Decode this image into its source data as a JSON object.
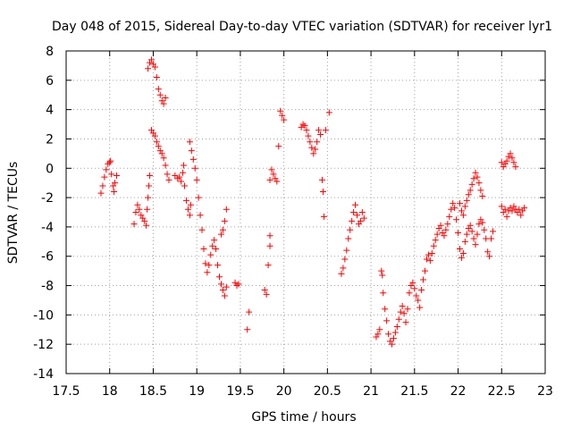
{
  "chart_data": {
    "type": "scatter",
    "title": "Day 048 of 2015, Sidereal Day-to-day VTEC variation (SDTVAR) for receiver lyr1",
    "xlabel": "GPS time / hours",
    "ylabel": "SDTVAR / TECUs",
    "xlim": [
      17.5,
      23
    ],
    "ylim": [
      -14,
      8
    ],
    "xticks": [
      17.5,
      18,
      18.5,
      19,
      19.5,
      20,
      20.5,
      21,
      21.5,
      22,
      22.5,
      23
    ],
    "xtick_labels": [
      "17.5",
      "18",
      "18.5",
      "19",
      "19.5",
      "20",
      "20.5",
      "21",
      "21.5",
      "22",
      "22.5",
      "23"
    ],
    "yticks": [
      -14,
      -12,
      -10,
      -8,
      -6,
      -4,
      -2,
      0,
      2,
      4,
      6,
      8
    ],
    "ytick_labels": [
      "-14",
      "-12",
      "-10",
      "-8",
      "-6",
      "-4",
      "-2",
      "0",
      "2",
      "4",
      "6",
      "8"
    ],
    "grid": true,
    "marker": "+",
    "marker_color": "#ff0000",
    "series": [
      {
        "name": "lyr1",
        "points": [
          [
            17.9,
            -1.7
          ],
          [
            17.92,
            -1.2
          ],
          [
            17.94,
            -0.6
          ],
          [
            17.96,
            -0.1
          ],
          [
            17.98,
            0.3
          ],
          [
            18.0,
            0.4
          ],
          [
            18.01,
            0.5
          ],
          [
            18.02,
            -0.4
          ],
          [
            18.04,
            -1.2
          ],
          [
            18.05,
            -1.6
          ],
          [
            18.06,
            -1.0
          ],
          [
            18.08,
            -0.5
          ],
          [
            18.28,
            -3.8
          ],
          [
            18.3,
            -3.0
          ],
          [
            18.32,
            -2.5
          ],
          [
            18.34,
            -2.8
          ],
          [
            18.36,
            -3.2
          ],
          [
            18.38,
            -3.4
          ],
          [
            18.4,
            -3.6
          ],
          [
            18.42,
            -3.9
          ],
          [
            18.43,
            -2.8
          ],
          [
            18.44,
            -2.0
          ],
          [
            18.45,
            -1.2
          ],
          [
            18.46,
            -0.5
          ],
          [
            18.44,
            6.8
          ],
          [
            18.46,
            7.2
          ],
          [
            18.48,
            7.4
          ],
          [
            18.5,
            7.1
          ],
          [
            18.52,
            6.9
          ],
          [
            18.54,
            6.2
          ],
          [
            18.56,
            5.4
          ],
          [
            18.58,
            5.0
          ],
          [
            18.6,
            4.6
          ],
          [
            18.62,
            4.4
          ],
          [
            18.64,
            4.8
          ],
          [
            18.48,
            2.6
          ],
          [
            18.5,
            2.4
          ],
          [
            18.52,
            2.2
          ],
          [
            18.54,
            1.8
          ],
          [
            18.56,
            1.5
          ],
          [
            18.58,
            1.2
          ],
          [
            18.6,
            1.0
          ],
          [
            18.62,
            0.7
          ],
          [
            18.64,
            0.2
          ],
          [
            18.66,
            -0.4
          ],
          [
            18.68,
            -0.8
          ],
          [
            18.75,
            -0.5
          ],
          [
            18.78,
            -0.7
          ],
          [
            18.8,
            -0.6
          ],
          [
            18.82,
            -0.9
          ],
          [
            18.84,
            -0.3
          ],
          [
            18.85,
            0.2
          ],
          [
            18.86,
            -1.2
          ],
          [
            18.88,
            -2.2
          ],
          [
            18.9,
            -2.8
          ],
          [
            18.92,
            -3.2
          ],
          [
            18.93,
            -2.5
          ],
          [
            18.92,
            1.8
          ],
          [
            18.94,
            1.2
          ],
          [
            18.96,
            0.6
          ],
          [
            18.98,
            0.0
          ],
          [
            19.0,
            -0.8
          ],
          [
            19.02,
            -2.0
          ],
          [
            19.04,
            -3.2
          ],
          [
            19.06,
            -4.2
          ],
          [
            19.08,
            -5.5
          ],
          [
            19.1,
            -6.5
          ],
          [
            19.12,
            -7.1
          ],
          [
            19.14,
            -6.6
          ],
          [
            19.16,
            -5.9
          ],
          [
            19.18,
            -5.3
          ],
          [
            19.2,
            -4.9
          ],
          [
            19.22,
            -5.5
          ],
          [
            19.24,
            -6.6
          ],
          [
            19.26,
            -7.4
          ],
          [
            19.28,
            -7.9
          ],
          [
            19.3,
            -8.3
          ],
          [
            19.32,
            -8.7
          ],
          [
            19.34,
            -8.1
          ],
          [
            19.28,
            -4.5
          ],
          [
            19.3,
            -4.2
          ],
          [
            19.32,
            -3.6
          ],
          [
            19.34,
            -2.8
          ],
          [
            19.44,
            -7.8
          ],
          [
            19.46,
            -8.0
          ],
          [
            19.48,
            -7.9
          ],
          [
            19.58,
            -11.0
          ],
          [
            19.6,
            -9.8
          ],
          [
            19.78,
            -8.3
          ],
          [
            19.8,
            -8.6
          ],
          [
            19.82,
            -6.6
          ],
          [
            19.84,
            -4.6
          ],
          [
            19.84,
            -5.3
          ],
          [
            19.84,
            -0.8
          ],
          [
            19.86,
            -0.1
          ],
          [
            19.88,
            -0.4
          ],
          [
            19.9,
            -0.7
          ],
          [
            19.92,
            -0.9
          ],
          [
            19.94,
            1.5
          ],
          [
            19.96,
            3.9
          ],
          [
            19.98,
            3.6
          ],
          [
            20.0,
            3.3
          ],
          [
            20.2,
            2.8
          ],
          [
            20.22,
            3.0
          ],
          [
            20.24,
            2.9
          ],
          [
            20.26,
            2.6
          ],
          [
            20.28,
            2.2
          ],
          [
            20.3,
            1.8
          ],
          [
            20.32,
            1.4
          ],
          [
            20.34,
            1.0
          ],
          [
            20.36,
            1.3
          ],
          [
            20.38,
            1.8
          ],
          [
            20.4,
            2.6
          ],
          [
            20.42,
            2.3
          ],
          [
            20.44,
            -0.8
          ],
          [
            20.45,
            -1.6
          ],
          [
            20.46,
            -3.3
          ],
          [
            20.48,
            2.6
          ],
          [
            20.52,
            3.8
          ],
          [
            20.66,
            -7.2
          ],
          [
            20.68,
            -6.8
          ],
          [
            20.7,
            -6.2
          ],
          [
            20.72,
            -5.6
          ],
          [
            20.74,
            -4.8
          ],
          [
            20.76,
            -4.2
          ],
          [
            20.78,
            -3.6
          ],
          [
            20.8,
            -3.0
          ],
          [
            20.82,
            -2.5
          ],
          [
            20.84,
            -3.2
          ],
          [
            20.86,
            -3.8
          ],
          [
            20.88,
            -3.6
          ],
          [
            20.9,
            -3.0
          ],
          [
            20.92,
            -3.4
          ],
          [
            21.06,
            -11.5
          ],
          [
            21.08,
            -11.3
          ],
          [
            21.1,
            -11.0
          ],
          [
            21.12,
            -7.0
          ],
          [
            21.13,
            -7.3
          ],
          [
            21.14,
            -8.5
          ],
          [
            21.16,
            -9.6
          ],
          [
            21.18,
            -10.4
          ],
          [
            21.2,
            -11.3
          ],
          [
            21.22,
            -11.8
          ],
          [
            21.24,
            -12.0
          ],
          [
            21.26,
            -11.6
          ],
          [
            21.28,
            -11.2
          ],
          [
            21.3,
            -10.8
          ],
          [
            21.32,
            -10.3
          ],
          [
            21.34,
            -9.8
          ],
          [
            21.36,
            -9.4
          ],
          [
            21.38,
            -9.9
          ],
          [
            21.4,
            -10.5
          ],
          [
            21.42,
            -9.6
          ],
          [
            21.44,
            -8.5
          ],
          [
            21.46,
            -8.0
          ],
          [
            21.48,
            -7.8
          ],
          [
            21.5,
            -8.2
          ],
          [
            21.52,
            -8.7
          ],
          [
            21.54,
            -9.0
          ],
          [
            21.56,
            -9.5
          ],
          [
            21.58,
            -8.3
          ],
          [
            21.6,
            -7.6
          ],
          [
            21.62,
            -7.0
          ],
          [
            21.64,
            -6.2
          ],
          [
            21.66,
            -5.9
          ],
          [
            21.68,
            -6.3
          ],
          [
            21.7,
            -5.8
          ],
          [
            21.72,
            -5.3
          ],
          [
            21.74,
            -4.9
          ],
          [
            21.76,
            -4.5
          ],
          [
            21.78,
            -4.1
          ],
          [
            21.8,
            -3.9
          ],
          [
            21.82,
            -4.4
          ],
          [
            21.84,
            -4.6
          ],
          [
            21.86,
            -4.2
          ],
          [
            21.88,
            -3.8
          ],
          [
            21.9,
            -3.3
          ],
          [
            21.92,
            -2.8
          ],
          [
            21.94,
            -2.4
          ],
          [
            21.96,
            -2.7
          ],
          [
            21.98,
            -3.5
          ],
          [
            22.0,
            -4.4
          ],
          [
            22.02,
            -5.5
          ],
          [
            22.04,
            -6.1
          ],
          [
            22.06,
            -5.8
          ],
          [
            22.08,
            -5.0
          ],
          [
            22.1,
            -4.5
          ],
          [
            22.12,
            -4.1
          ],
          [
            22.14,
            -3.9
          ],
          [
            22.16,
            -4.3
          ],
          [
            22.18,
            -4.8
          ],
          [
            22.2,
            -5.2
          ],
          [
            22.22,
            -4.5
          ],
          [
            22.24,
            -3.8
          ],
          [
            22.26,
            -3.5
          ],
          [
            22.28,
            -3.7
          ],
          [
            22.3,
            -4.2
          ],
          [
            22.32,
            -4.8
          ],
          [
            22.34,
            -5.7
          ],
          [
            22.36,
            -6.0
          ],
          [
            22.38,
            -4.8
          ],
          [
            22.4,
            -4.3
          ],
          [
            22.02,
            -2.4
          ],
          [
            22.04,
            -2.9
          ],
          [
            22.06,
            -3.2
          ],
          [
            22.08,
            -2.6
          ],
          [
            22.1,
            -2.2
          ],
          [
            22.12,
            -1.8
          ],
          [
            22.14,
            -1.5
          ],
          [
            22.16,
            -1.1
          ],
          [
            22.18,
            -0.7
          ],
          [
            22.2,
            -0.3
          ],
          [
            22.22,
            -0.6
          ],
          [
            22.24,
            -1.0
          ],
          [
            22.26,
            -1.5
          ],
          [
            22.28,
            -1.9
          ],
          [
            22.5,
            0.4
          ],
          [
            22.52,
            0.1
          ],
          [
            22.54,
            0.3
          ],
          [
            22.56,
            0.5
          ],
          [
            22.58,
            0.8
          ],
          [
            22.6,
            1.0
          ],
          [
            22.62,
            0.7
          ],
          [
            22.64,
            0.4
          ],
          [
            22.66,
            0.1
          ],
          [
            22.5,
            -2.6
          ],
          [
            22.52,
            -3.0
          ],
          [
            22.54,
            -2.8
          ],
          [
            22.56,
            -3.3
          ],
          [
            22.58,
            -2.9
          ],
          [
            22.6,
            -2.7
          ],
          [
            22.62,
            -2.9
          ],
          [
            22.64,
            -2.6
          ],
          [
            22.66,
            -2.8
          ],
          [
            22.68,
            -3.0
          ],
          [
            22.7,
            -2.8
          ],
          [
            22.72,
            -3.2
          ],
          [
            22.74,
            -2.9
          ],
          [
            22.76,
            -2.7
          ]
        ]
      }
    ]
  }
}
